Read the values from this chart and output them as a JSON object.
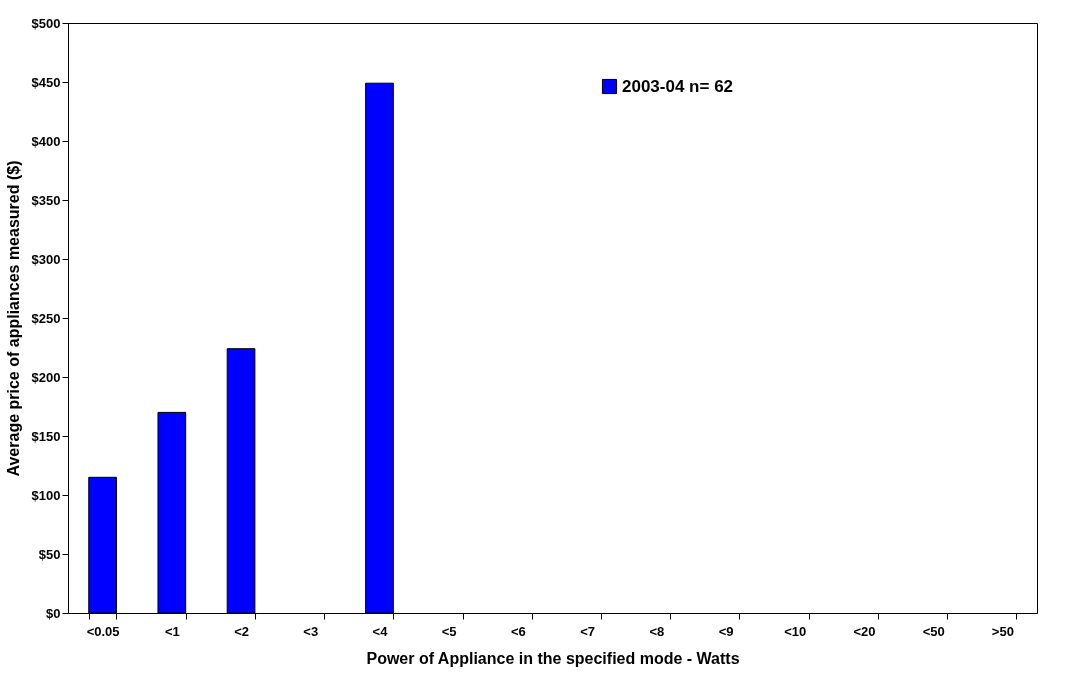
{
  "chart_data": {
    "type": "bar",
    "xlabel": "Power of Appliance in the specified mode - Watts",
    "ylabel": "Average price of appliances measured ($)",
    "categories": [
      "<0.05",
      "<1",
      "<2",
      "<3",
      "<4",
      "<5",
      "<6",
      "<7",
      "<8",
      "<9",
      "<10",
      "<20",
      "<50",
      ">50"
    ],
    "series": [
      {
        "name": "2003-04 n= 62",
        "color": "#0000ff",
        "values": [
          115,
          170,
          224,
          null,
          449,
          null,
          null,
          null,
          null,
          null,
          null,
          null,
          null,
          null
        ]
      }
    ],
    "ylim": [
      0,
      500
    ],
    "yticks": [
      {
        "value": 0,
        "label": "$0"
      },
      {
        "value": 50,
        "label": "$50"
      },
      {
        "value": 100,
        "label": "$100"
      },
      {
        "value": 150,
        "label": "$150"
      },
      {
        "value": 200,
        "label": "$200"
      },
      {
        "value": 250,
        "label": "$250"
      },
      {
        "value": 300,
        "label": "$300"
      },
      {
        "value": 350,
        "label": "$350"
      },
      {
        "value": 400,
        "label": "$400"
      },
      {
        "value": 450,
        "label": "$450"
      },
      {
        "value": 500,
        "label": "$500"
      }
    ],
    "grid": false,
    "legend": "top right"
  }
}
